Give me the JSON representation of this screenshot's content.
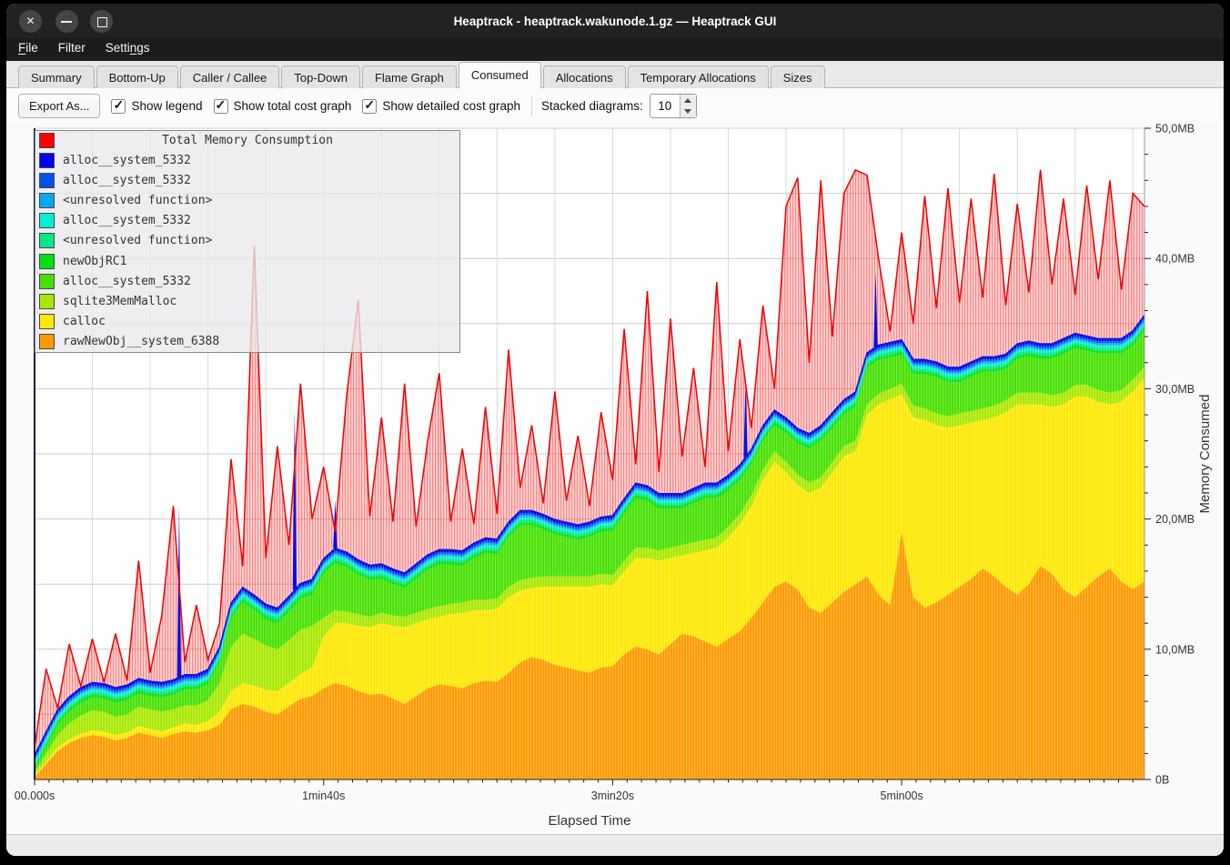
{
  "window": {
    "title": "Heaptrack - heaptrack.wakunode.1.gz — Heaptrack GUI",
    "controls": {
      "close": "✕",
      "minimize": "–",
      "maximize": "□"
    }
  },
  "menu": {
    "items": [
      {
        "label": "File",
        "underline_index": 0
      },
      {
        "label": "Filter",
        "underline_index": -1
      },
      {
        "label": "Settings",
        "underline_index": 5
      }
    ]
  },
  "tabs": {
    "active": "Consumed",
    "items": [
      "Summary",
      "Bottom-Up",
      "Caller / Callee",
      "Top-Down",
      "Flame Graph",
      "Consumed",
      "Allocations",
      "Temporary Allocations",
      "Sizes"
    ]
  },
  "toolbar": {
    "export_label": "Export As...",
    "checkboxes": [
      {
        "label": "Show legend",
        "checked": true
      },
      {
        "label": "Show total cost graph",
        "checked": true
      },
      {
        "label": "Show detailed cost graph",
        "checked": true
      }
    ],
    "stacked_label": "Stacked diagrams:",
    "stacked_value": "10"
  },
  "chart_data": {
    "type": "area",
    "title": "Total Memory Consumption",
    "xlabel": "Elapsed Time",
    "ylabel": "Memory Consumed",
    "ylim": [
      0,
      50
    ],
    "x_max_s": 384,
    "sample_step_s": 4,
    "grid": {
      "x_step_s": 20,
      "y_step_mb": 5
    },
    "x_ticks": [
      {
        "t": 0,
        "label": "00.000s"
      },
      {
        "t": 100,
        "label": "1min40s"
      },
      {
        "t": 200,
        "label": "3min20s"
      },
      {
        "t": 300,
        "label": "5min00s"
      }
    ],
    "y_ticks": [
      {
        "v": 0,
        "label": "0B"
      },
      {
        "v": 10,
        "label": "10,0MB"
      },
      {
        "v": 20,
        "label": "20,0MB"
      },
      {
        "v": 30,
        "label": "30,0MB"
      },
      {
        "v": 40,
        "label": "40,0MB"
      },
      {
        "v": 50,
        "label": "50,0MB"
      }
    ],
    "legend": [
      {
        "label": "Total Memory Consumption",
        "color": "#ff0000",
        "is_title": true
      },
      {
        "label": "alloc__system_5332",
        "color": "#0000f0"
      },
      {
        "label": "alloc__system_5332",
        "color": "#0050f0"
      },
      {
        "label": "<unresolved function>",
        "color": "#00a8f0"
      },
      {
        "label": "alloc__system_5332",
        "color": "#00f0d2"
      },
      {
        "label": "<unresolved function>",
        "color": "#00e886"
      },
      {
        "label": "newObjRC1",
        "color": "#00e013"
      },
      {
        "label": "alloc__system_5332",
        "color": "#46e000"
      },
      {
        "label": "sqlite3MemMalloc",
        "color": "#a8e800"
      },
      {
        "label": "calloc",
        "color": "#ffe800"
      },
      {
        "label": "rawNewObj__system_6388",
        "color": "#ff9a00"
      }
    ],
    "series": [
      {
        "name": "rawNewObj__system_6388",
        "color": "#ff9a00",
        "values": [
          0.2,
          1.2,
          2.2,
          2.8,
          3.2,
          3.4,
          3.3,
          3.0,
          3.2,
          3.6,
          3.4,
          3.2,
          3.5,
          3.7,
          3.6,
          3.8,
          4.2,
          5.4,
          5.8,
          5.6,
          5.2,
          5.0,
          5.6,
          6.2,
          6.4,
          7.0,
          7.4,
          7.2,
          6.8,
          6.5,
          6.6,
          6.2,
          5.8,
          6.4,
          7.0,
          7.3,
          7.2,
          7.0,
          7.4,
          7.6,
          7.5,
          8.2,
          9.0,
          9.4,
          9.2,
          8.8,
          8.6,
          8.4,
          8.2,
          8.6,
          8.7,
          9.6,
          10.2,
          10.0,
          9.6,
          10.4,
          11.2,
          11.0,
          10.6,
          10.2,
          10.8,
          11.4,
          12.4,
          13.6,
          14.8,
          15.2,
          14.6,
          13.2,
          12.8,
          13.6,
          14.4,
          15.0,
          15.6,
          14.2,
          13.4,
          19.0,
          14.0,
          13.2,
          13.6,
          14.2,
          14.8,
          15.4,
          16.2,
          15.6,
          14.8,
          14.2,
          15.0,
          16.4,
          15.8,
          14.6,
          14.0,
          14.8,
          15.6,
          16.2,
          15.2,
          14.6,
          15.2
        ]
      },
      {
        "name": "calloc",
        "color": "#ffe800",
        "values": [
          0.1,
          0.2,
          0.3,
          0.3,
          0.3,
          0.4,
          0.4,
          0.4,
          0.4,
          0.5,
          0.5,
          0.5,
          0.5,
          0.6,
          0.6,
          0.7,
          1.0,
          1.4,
          1.6,
          1.6,
          1.7,
          1.8,
          1.8,
          1.9,
          2.2,
          4.0,
          4.6,
          4.8,
          5.0,
          5.2,
          5.4,
          5.6,
          5.9,
          5.6,
          5.3,
          5.2,
          5.5,
          5.8,
          5.6,
          5.4,
          5.6,
          5.8,
          5.5,
          5.3,
          5.6,
          6.0,
          6.2,
          6.4,
          6.6,
          6.4,
          6.2,
          6.4,
          6.8,
          7.0,
          7.2,
          6.6,
          6.0,
          6.4,
          7.0,
          7.6,
          7.8,
          8.2,
          8.6,
          9.4,
          9.6,
          8.4,
          8.0,
          8.8,
          9.6,
          10.0,
          10.4,
          10.2,
          12.4,
          14.6,
          15.8,
          10.6,
          13.8,
          14.4,
          13.6,
          12.8,
          12.4,
          12.0,
          11.4,
          12.2,
          13.4,
          14.6,
          13.8,
          12.4,
          12.8,
          14.2,
          15.4,
          14.6,
          13.4,
          12.6,
          13.8,
          15.2,
          15.6
        ]
      },
      {
        "name": "sqlite3MemMalloc",
        "color": "#a8e800",
        "values": [
          0.2,
          0.6,
          0.9,
          1.2,
          1.4,
          1.5,
          1.5,
          1.4,
          1.4,
          1.5,
          1.5,
          1.5,
          1.4,
          1.4,
          1.5,
          1.6,
          2.2,
          3.4,
          3.8,
          3.6,
          3.4,
          3.2,
          3.3,
          3.4,
          3.2,
          1.4,
          1.0,
          0.9,
          0.9,
          0.8,
          0.8,
          0.8,
          0.8,
          0.8,
          0.8,
          0.8,
          0.8,
          0.8,
          0.8,
          0.8,
          0.8,
          0.8,
          0.8,
          0.8,
          0.8,
          0.8,
          0.8,
          0.8,
          0.8,
          0.8,
          0.8,
          0.8,
          0.8,
          0.8,
          0.8,
          0.8,
          0.8,
          0.8,
          0.8,
          0.8,
          0.8,
          0.8,
          0.8,
          0.8,
          0.8,
          0.8,
          0.8,
          0.8,
          0.8,
          0.8,
          0.8,
          0.8,
          0.8,
          0.8,
          0.8,
          0.8,
          0.9,
          0.9,
          0.9,
          0.9,
          0.9,
          0.9,
          0.9,
          0.9,
          0.9,
          0.9,
          0.9,
          0.9,
          0.9,
          0.9,
          0.9,
          0.9,
          0.9,
          0.9,
          0.9,
          0.9,
          0.9
        ]
      },
      {
        "name": "alloc__system_5332",
        "color": "#46e000",
        "values": [
          0.2,
          0.5,
          0.8,
          0.9,
          1.0,
          1.0,
          1.0,
          1.1,
          1.1,
          1.0,
          1.0,
          1.1,
          1.1,
          1.2,
          1.2,
          1.2,
          1.6,
          2.2,
          2.4,
          2.2,
          2.0,
          2.0,
          2.2,
          2.4,
          2.4,
          3.4,
          3.6,
          3.4,
          3.0,
          2.8,
          2.6,
          2.4,
          2.2,
          2.6,
          3.0,
          3.2,
          3.0,
          2.8,
          3.2,
          3.6,
          3.4,
          3.8,
          4.2,
          4.0,
          3.6,
          3.2,
          3.0,
          2.8,
          3.0,
          3.2,
          3.4,
          3.6,
          3.8,
          3.6,
          3.2,
          3.0,
          2.8,
          3.0,
          3.2,
          3.0,
          2.8,
          2.6,
          2.4,
          2.2,
          2.0,
          2.2,
          2.4,
          2.6,
          2.8,
          2.6,
          2.4,
          2.6,
          2.8,
          2.6,
          2.4,
          2.2,
          2.4,
          2.6,
          2.8,
          2.6,
          2.4,
          2.6,
          2.8,
          2.6,
          2.4,
          2.6,
          2.8,
          2.6,
          2.8,
          3.0,
          2.8,
          2.6,
          2.8,
          3.0,
          2.8,
          2.6,
          2.8
        ]
      },
      {
        "name": "newObjRC1",
        "color": "#00e013",
        "const_value": 0.25
      },
      {
        "name": "<unresolved function>",
        "color": "#00e886",
        "const_value": 0.2
      },
      {
        "name": "alloc__system_5332",
        "color": "#00f0d2",
        "const_value": 0.2
      },
      {
        "name": "<unresolved function>",
        "color": "#00a8f0",
        "const_value": 0.15
      },
      {
        "name": "alloc__system_5332",
        "color": "#0050f0",
        "const_value": 0.15
      },
      {
        "name": "alloc__system_5332",
        "color": "#0000f0",
        "const_value": 0.2
      }
    ],
    "total": {
      "name": "Total Memory Consumption",
      "color": "#ee0000",
      "values": [
        2.5,
        8.5,
        4.8,
        10.4,
        6.0,
        10.8,
        7.4,
        11.2,
        7.6,
        16.8,
        8.2,
        12.6,
        21.0,
        9.0,
        13.4,
        9.2,
        12.0,
        24.6,
        16.4,
        41.0,
        17.0,
        25.6,
        18.0,
        30.4,
        20.0,
        24.0,
        19.0,
        29.5,
        36.8,
        20.2,
        27.8,
        19.8,
        30.4,
        19.4,
        26.0,
        31.2,
        19.8,
        25.4,
        19.6,
        28.6,
        20.4,
        33.0,
        22.4,
        27.2,
        21.2,
        29.8,
        21.4,
        26.4,
        21.0,
        28.2,
        23.0,
        34.6,
        24.2,
        37.5,
        23.6,
        35.4,
        24.8,
        31.6,
        24.0,
        38.2,
        25.2,
        33.8,
        27.0,
        36.4,
        30.0,
        44.0,
        46.2,
        32.0,
        46.0,
        34.0,
        45.0,
        46.8,
        46.4,
        40.0,
        34.4,
        42.0,
        35.0,
        44.8,
        36.2,
        45.4,
        36.6,
        44.6,
        37.0,
        46.5,
        36.4,
        44.2,
        37.4,
        46.8,
        38.0,
        44.6,
        37.2,
        45.6,
        38.4,
        46.0,
        37.6,
        45.0,
        44.0
      ]
    },
    "blue_spikes": [
      {
        "t": 50,
        "peak": 21.0
      },
      {
        "t": 90,
        "peak": 28.5
      },
      {
        "t": 104,
        "peak": 21.5
      },
      {
        "t": 246,
        "peak": 30.6
      },
      {
        "t": 291,
        "peak": 39.0
      }
    ]
  }
}
